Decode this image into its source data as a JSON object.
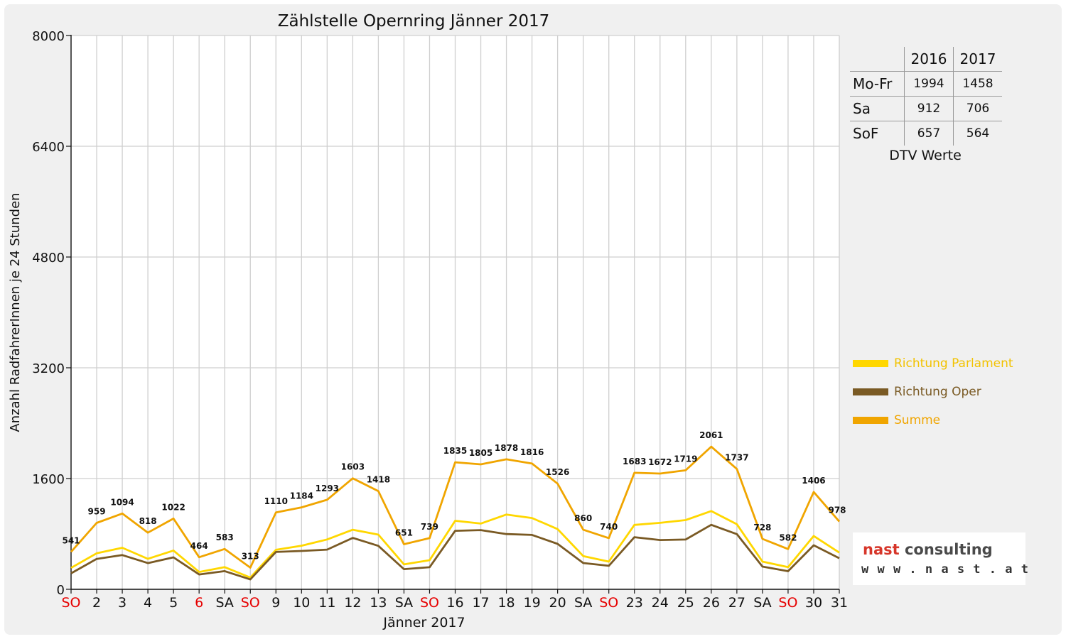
{
  "chart_data": {
    "type": "line",
    "title": "Zählstelle Opernring Jänner 2017",
    "xlabel": "Jänner 2017",
    "ylabel": "Anzahl RadfahrerInnen je 24 Stunden",
    "ylim": [
      0,
      8000
    ],
    "yticks": [
      0,
      1600,
      3200,
      4800,
      6400,
      8000
    ],
    "grid": true,
    "legend_position": "right",
    "categories": [
      "SO",
      "2",
      "3",
      "4",
      "5",
      "6",
      "SA",
      "SO",
      "9",
      "10",
      "11",
      "12",
      "13",
      "SA",
      "SO",
      "16",
      "17",
      "18",
      "19",
      "20",
      "SA",
      "SO",
      "23",
      "24",
      "25",
      "26",
      "27",
      "SA",
      "SO",
      "30",
      "31"
    ],
    "red_categories": [
      0,
      5,
      7,
      14,
      21,
      28
    ],
    "series": [
      {
        "name": "Richtung Parlament",
        "color": "#ffd700",
        "values": [
          310,
          520,
          600,
          440,
          560,
          250,
          320,
          170,
          570,
          630,
          720,
          860,
          790,
          360,
          420,
          990,
          950,
          1080,
          1030,
          870,
          480,
          400,
          930,
          960,
          1000,
          1130,
          940,
          400,
          320,
          770,
          530
        ]
      },
      {
        "name": "Richtung Oper",
        "color": "#7a5a24",
        "values": [
          231,
          439,
          494,
          378,
          462,
          214,
          263,
          143,
          540,
          554,
          573,
          743,
          628,
          291,
          319,
          845,
          855,
          798,
          786,
          656,
          380,
          340,
          753,
          712,
          719,
          931,
          797,
          328,
          262,
          636,
          448
        ]
      },
      {
        "name": "Summe",
        "color": "#f0a500",
        "values": [
          541,
          959,
          1094,
          818,
          1022,
          464,
          583,
          313,
          1110,
          1184,
          1293,
          1603,
          1418,
          651,
          739,
          1835,
          1805,
          1878,
          1816,
          1526,
          860,
          740,
          1683,
          1672,
          1719,
          2061,
          1737,
          728,
          582,
          1406,
          978
        ]
      }
    ]
  },
  "dtv": {
    "columns": [
      "2016",
      "2017"
    ],
    "rows": [
      {
        "label": "Mo-Fr",
        "v2016": "1994",
        "v2017": "1458"
      },
      {
        "label": "Sa",
        "v2016": "912",
        "v2017": "706"
      },
      {
        "label": "SoF",
        "v2016": "657",
        "v2017": "564"
      }
    ],
    "caption": "DTV Werte"
  },
  "logo": {
    "name_part1": "nast",
    "name_part2": " consulting",
    "url": "w w w . n a s t . a t"
  }
}
